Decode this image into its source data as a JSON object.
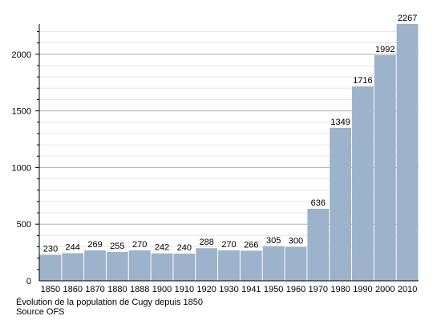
{
  "chart_data": {
    "type": "bar",
    "categories": [
      "1850",
      "1860",
      "1870",
      "1880",
      "1888",
      "1900",
      "1910",
      "1920",
      "1930",
      "1941",
      "1950",
      "1960",
      "1970",
      "1980",
      "1990",
      "2000",
      "2010"
    ],
    "values": [
      230,
      244,
      269,
      255,
      270,
      242,
      240,
      288,
      270,
      266,
      305,
      300,
      636,
      1349,
      1716,
      1992,
      2267
    ],
    "ylim": [
      0,
      2267
    ],
    "yticks": [
      0,
      500,
      1000,
      1500,
      2000
    ],
    "grid": true,
    "data_labels": true,
    "bar_color": "#9db3cc"
  },
  "caption": {
    "line1": "Évolution de la population de Cugy depuis 1850",
    "line2": "Source OFS"
  }
}
